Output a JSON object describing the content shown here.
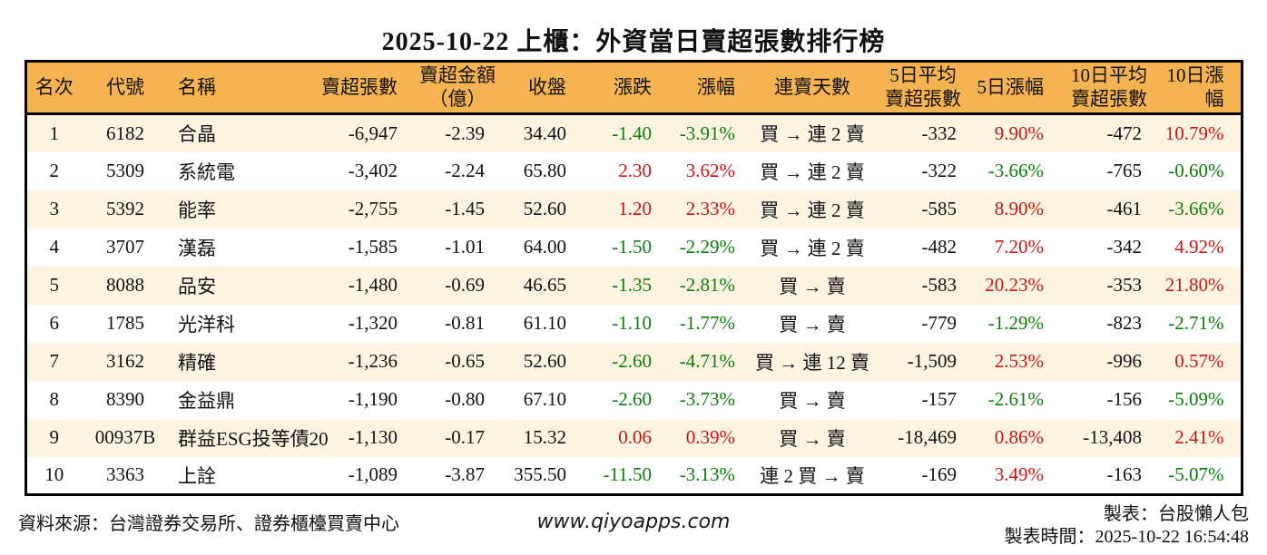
{
  "title": "2025-10-22 上櫃：外資當日賣超張數排行榜",
  "colors": {
    "header_bg": "#F6B352",
    "row_alt_bg": "#FDF5E2",
    "row_bg": "#FFFFFF",
    "up_red": "#CE1313",
    "down_green": "#0A7E0A",
    "border_black": "#000000"
  },
  "table": {
    "headers": [
      "名次",
      "代號",
      "名稱",
      "賣超張數",
      "賣超金額\n（億）",
      "收盤",
      "漲跌",
      "漲幅",
      "連賣天數",
      "5日平均\n賣超張數",
      "5日漲幅",
      "10日平均\n賣超張數",
      "10日漲幅"
    ],
    "rows": [
      {
        "rank": "1",
        "code": "6182",
        "name": "合晶",
        "sell_qty": "-6,947",
        "sell_amt": "-2.39",
        "close": "34.40",
        "change": "-1.40",
        "change_pct": "-3.91%",
        "streak": "買 → 連 2 賣",
        "avg5": "-332",
        "pct5": "9.90%",
        "avg10": "-472",
        "pct10": "10.79%"
      },
      {
        "rank": "2",
        "code": "5309",
        "name": "系統電",
        "sell_qty": "-3,402",
        "sell_amt": "-2.24",
        "close": "65.80",
        "change": "2.30",
        "change_pct": "3.62%",
        "streak": "買 → 連 2 賣",
        "avg5": "-322",
        "pct5": "-3.66%",
        "avg10": "-765",
        "pct10": "-0.60%"
      },
      {
        "rank": "3",
        "code": "5392",
        "name": "能率",
        "sell_qty": "-2,755",
        "sell_amt": "-1.45",
        "close": "52.60",
        "change": "1.20",
        "change_pct": "2.33%",
        "streak": "買 → 連 2 賣",
        "avg5": "-585",
        "pct5": "8.90%",
        "avg10": "-461",
        "pct10": "-3.66%"
      },
      {
        "rank": "4",
        "code": "3707",
        "name": "漢磊",
        "sell_qty": "-1,585",
        "sell_amt": "-1.01",
        "close": "64.00",
        "change": "-1.50",
        "change_pct": "-2.29%",
        "streak": "買 → 連 2 賣",
        "avg5": "-482",
        "pct5": "7.20%",
        "avg10": "-342",
        "pct10": "4.92%"
      },
      {
        "rank": "5",
        "code": "8088",
        "name": "品安",
        "sell_qty": "-1,480",
        "sell_amt": "-0.69",
        "close": "46.65",
        "change": "-1.35",
        "change_pct": "-2.81%",
        "streak": "買 → 賣",
        "avg5": "-583",
        "pct5": "20.23%",
        "avg10": "-353",
        "pct10": "21.80%"
      },
      {
        "rank": "6",
        "code": "1785",
        "name": "光洋科",
        "sell_qty": "-1,320",
        "sell_amt": "-0.81",
        "close": "61.10",
        "change": "-1.10",
        "change_pct": "-1.77%",
        "streak": "買 → 賣",
        "avg5": "-779",
        "pct5": "-1.29%",
        "avg10": "-823",
        "pct10": "-2.71%"
      },
      {
        "rank": "7",
        "code": "3162",
        "name": "精確",
        "sell_qty": "-1,236",
        "sell_amt": "-0.65",
        "close": "52.60",
        "change": "-2.60",
        "change_pct": "-4.71%",
        "streak": "買 → 連 12 賣",
        "avg5": "-1,509",
        "pct5": "2.53%",
        "avg10": "-996",
        "pct10": "0.57%"
      },
      {
        "rank": "8",
        "code": "8390",
        "name": "金益鼎",
        "sell_qty": "-1,190",
        "sell_amt": "-0.80",
        "close": "67.10",
        "change": "-2.60",
        "change_pct": "-3.73%",
        "streak": "買 → 賣",
        "avg5": "-157",
        "pct5": "-2.61%",
        "avg10": "-156",
        "pct10": "-5.09%"
      },
      {
        "rank": "9",
        "code": "00937B",
        "name": "群益ESG投等債20",
        "sell_qty": "-1,130",
        "sell_amt": "-0.17",
        "close": "15.32",
        "change": "0.06",
        "change_pct": "0.39%",
        "streak": "買 → 賣",
        "avg5": "-18,469",
        "pct5": "0.86%",
        "avg10": "-13,408",
        "pct10": "2.41%"
      },
      {
        "rank": "10",
        "code": "3363",
        "name": "上詮",
        "sell_qty": "-1,089",
        "sell_amt": "-3.87",
        "close": "355.50",
        "change": "-11.50",
        "change_pct": "-3.13%",
        "streak": "連 2 買 → 賣",
        "avg5": "-169",
        "pct5": "3.49%",
        "avg10": "-163",
        "pct10": "-5.07%"
      }
    ]
  },
  "footer": {
    "source": "資料來源：台灣證券交易所、證券櫃檯買賣中心",
    "site": "www.qiyoapps.com",
    "author": "製表：台股懶人包",
    "time": "製表時間：2025-10-22 16:54:48"
  }
}
